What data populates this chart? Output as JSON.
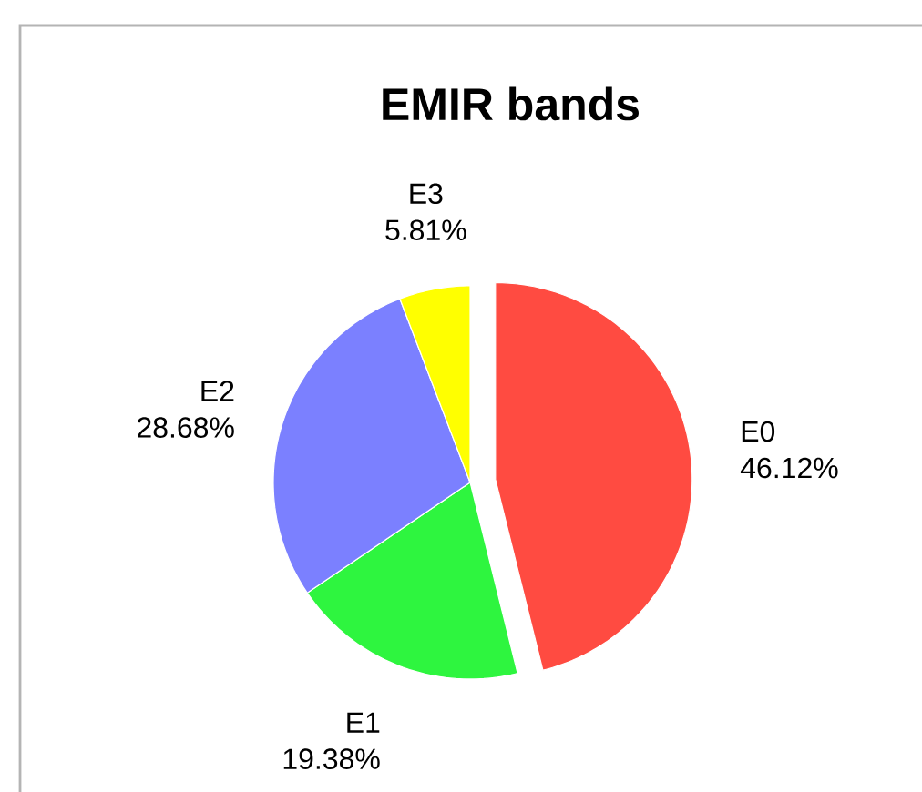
{
  "chart_data": {
    "type": "pie",
    "title": "EMIR bands",
    "categories": [
      "E0",
      "E1",
      "E2",
      "E3"
    ],
    "values": [
      46.12,
      19.38,
      28.68,
      5.81
    ],
    "value_labels": [
      "46.12%",
      "19.38%",
      "28.68%",
      "5.81%"
    ],
    "colors": [
      "#ff4b41",
      "#2ef53f",
      "#7b80ff",
      "#ffff00"
    ]
  }
}
